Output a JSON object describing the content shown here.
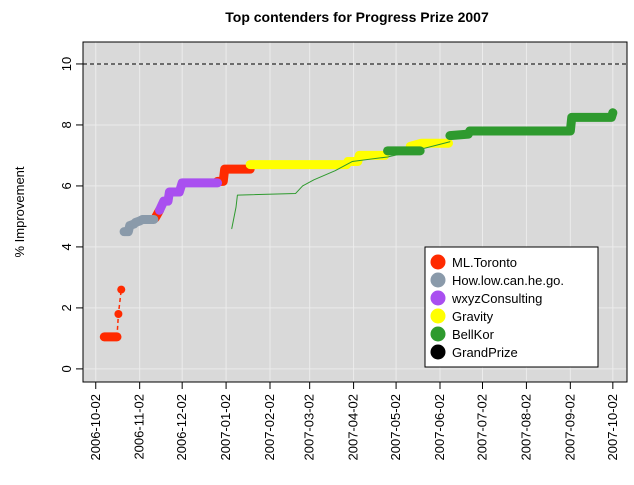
{
  "chart_data": {
    "type": "line",
    "title": "Top contenders for Progress Prize 2007",
    "ylabel": "% Improvement",
    "xlim": [
      "2006-09-23",
      "2007-10-12"
    ],
    "xticks": [
      "2006-10-02",
      "2006-11-02",
      "2006-12-02",
      "2007-01-02",
      "2007-02-02",
      "2007-03-02",
      "2007-04-02",
      "2007-05-02",
      "2007-06-02",
      "2007-07-02",
      "2007-08-02",
      "2007-09-02",
      "2007-10-02"
    ],
    "ylim": [
      -0.43,
      10.72
    ],
    "yticks": [
      0,
      2,
      4,
      6,
      8,
      10
    ],
    "grid": true,
    "legend": "lower right",
    "series": [
      {
        "name": "ML.Toronto",
        "color": "#ff2a00",
        "line_width": 9,
        "x": [
          "2006-10-08",
          "2006-10-17",
          "2006-10-25",
          "2006-11-13",
          "2006-11-16",
          "2006-12-20",
          "2006-12-27",
          "2006-12-31",
          "2007-01-01",
          "2007-01-19"
        ],
        "values": [
          1.05,
          1.05,
          null,
          4.95,
          5.2,
          null,
          6.15,
          6.15,
          6.55,
          6.55
        ]
      },
      {
        "name": "How.low.can.he.go.",
        "color": "#8a9aaa",
        "line_width": 9,
        "x": [
          "2006-10-22",
          "2006-10-25",
          "2006-10-26",
          "2006-10-29",
          "2006-10-30",
          "2006-11-02",
          "2006-11-04",
          "2006-11-12"
        ],
        "values": [
          4.5,
          4.5,
          4.7,
          4.75,
          4.8,
          4.85,
          4.9,
          4.9
        ]
      },
      {
        "name": "wxyzConsulting",
        "color": "#a94ff0",
        "line_width": 9,
        "x": [
          "2006-11-16",
          "2006-11-19",
          "2006-11-22",
          "2006-11-23",
          "2006-11-30",
          "2006-12-02",
          "2006-12-27"
        ],
        "values": [
          5.2,
          5.5,
          5.5,
          5.8,
          5.8,
          6.1,
          6.1
        ]
      },
      {
        "name": "Gravity",
        "color": "#ffff00",
        "line_width": 9,
        "x": [
          "2007-01-19",
          "2007-03-28",
          "2007-03-29",
          "2007-04-05",
          "2007-04-06",
          "2007-04-24",
          "2007-05-01",
          "2007-05-12",
          "2007-05-20",
          "2007-06-08"
        ],
        "values": [
          6.7,
          6.7,
          6.8,
          6.8,
          7.0,
          7.0,
          null,
          7.3,
          7.4,
          7.4
        ]
      },
      {
        "name": "BellKor",
        "color": "#2e9a2e",
        "line_width": 9,
        "x": [
          "2007-04-26",
          "2007-05-19",
          "2007-05-25",
          "2007-06-09",
          "2007-06-22",
          "2007-06-23",
          "2007-09-02",
          "2007-09-03",
          "2007-10-01",
          "2007-10-02"
        ],
        "values": [
          7.15,
          7.15,
          null,
          7.65,
          7.7,
          7.8,
          7.8,
          8.25,
          8.25,
          8.4
        ]
      },
      {
        "name": "GrandPrize",
        "color": "#000000",
        "line_width": 1,
        "dash": true,
        "x": [
          "2006-09-23",
          "2007-10-12"
        ],
        "values": [
          10,
          10
        ]
      },
      {
        "color": "#ff2a00",
        "line_width": 1.5,
        "dash": true,
        "markers": true,
        "x": [
          "2006-10-17",
          "2006-10-18",
          "2006-10-20"
        ],
        "values": [
          1.05,
          1.8,
          2.6
        ]
      },
      {
        "color": "#2e9a2e",
        "line_width": 1,
        "x": [
          "2007-01-06",
          "2007-01-09",
          "2007-01-10",
          "2007-02-20",
          "2007-02-25",
          "2007-03-05",
          "2007-03-20",
          "2007-04-01",
          "2007-04-26",
          "2007-05-19",
          "2007-06-09"
        ],
        "values": [
          4.6,
          5.3,
          5.7,
          5.75,
          6.0,
          6.2,
          6.5,
          6.8,
          6.95,
          7.2,
          7.45
        ]
      }
    ]
  }
}
